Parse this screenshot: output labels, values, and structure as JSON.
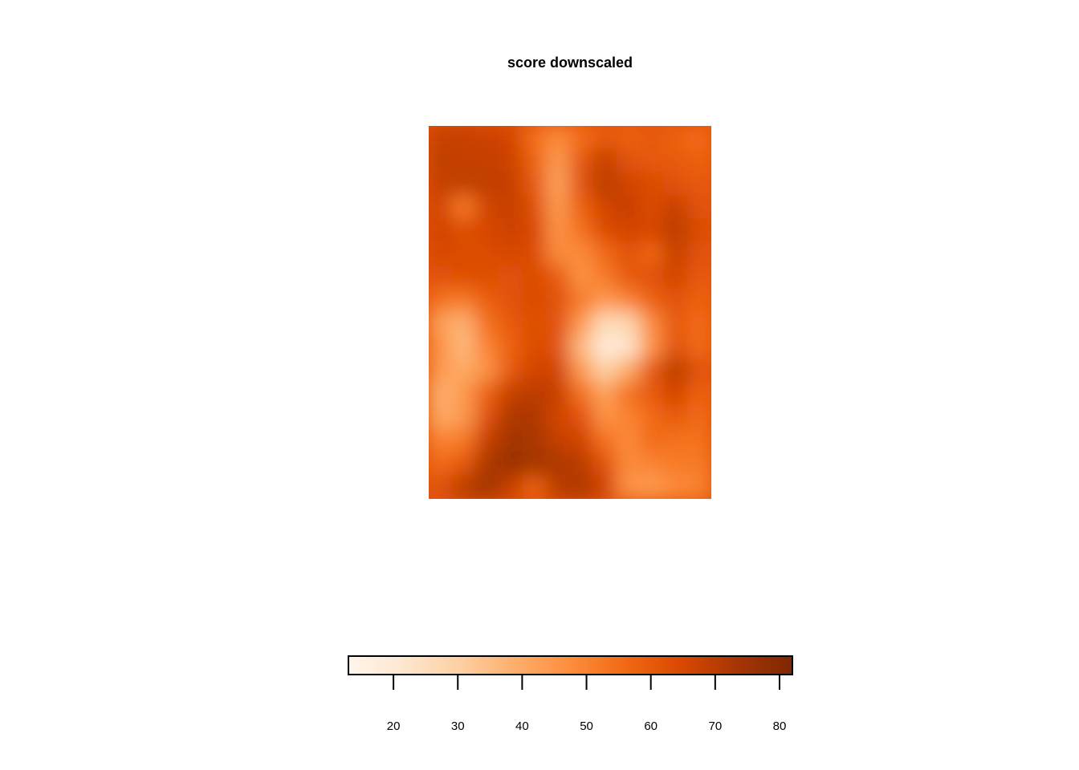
{
  "chart_data": {
    "type": "heatmap",
    "title": "score downscaled",
    "xlabel": "",
    "ylabel": "",
    "legend": {
      "placement": "bottom",
      "range": [
        13,
        82
      ],
      "ticks": [
        20,
        30,
        40,
        50,
        60,
        70,
        80
      ],
      "tick_labels": [
        "20",
        "30",
        "40",
        "50",
        "60",
        "70",
        "80"
      ]
    },
    "color_scale": {
      "name": "Oranges",
      "stops": [
        "#fff5eb",
        "#fee6ce",
        "#fdd0a2",
        "#fdae6b",
        "#fd8d3c",
        "#f16913",
        "#d94801",
        "#a63603",
        "#7f2704"
      ]
    },
    "grid_size": [
      12,
      16
    ],
    "values": [
      [
        68,
        68,
        67,
        66,
        55,
        48,
        55,
        60,
        58,
        60,
        58,
        56
      ],
      [
        69,
        68,
        68,
        67,
        58,
        44,
        60,
        68,
        62,
        60,
        60,
        58
      ],
      [
        68,
        69,
        69,
        68,
        60,
        42,
        62,
        70,
        66,
        64,
        62,
        60
      ],
      [
        66,
        52,
        66,
        68,
        63,
        44,
        58,
        66,
        68,
        64,
        68,
        62
      ],
      [
        66,
        63,
        65,
        67,
        65,
        46,
        54,
        64,
        66,
        65,
        70,
        64
      ],
      [
        65,
        64,
        64,
        65,
        64,
        48,
        48,
        56,
        62,
        57,
        68,
        62
      ],
      [
        62,
        63,
        63,
        62,
        64,
        60,
        46,
        52,
        60,
        62,
        66,
        60
      ],
      [
        54,
        52,
        59,
        62,
        64,
        62,
        52,
        44,
        50,
        58,
        62,
        58
      ],
      [
        42,
        38,
        54,
        60,
        63,
        62,
        44,
        26,
        28,
        48,
        60,
        56
      ],
      [
        46,
        36,
        50,
        58,
        64,
        62,
        36,
        18,
        22,
        46,
        62,
        56
      ],
      [
        44,
        40,
        46,
        60,
        66,
        66,
        44,
        30,
        40,
        60,
        70,
        62
      ],
      [
        38,
        44,
        58,
        68,
        70,
        68,
        54,
        42,
        54,
        60,
        66,
        58
      ],
      [
        40,
        44,
        62,
        72,
        72,
        66,
        62,
        46,
        50,
        56,
        60,
        56
      ],
      [
        50,
        52,
        68,
        74,
        73,
        68,
        66,
        54,
        48,
        56,
        54,
        54
      ],
      [
        56,
        60,
        72,
        76,
        74,
        72,
        70,
        62,
        48,
        50,
        52,
        52
      ],
      [
        62,
        70,
        74,
        68,
        58,
        70,
        72,
        66,
        46,
        44,
        48,
        50
      ]
    ]
  }
}
